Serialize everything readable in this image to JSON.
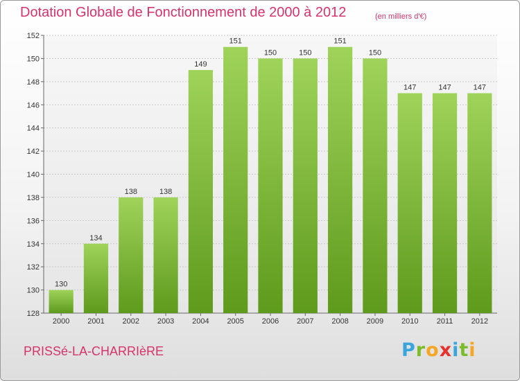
{
  "title": "Dotation Globale de Fonctionnement de 2000 à 2012",
  "title_unit": "(en milliers d'€)",
  "commune": "PRISSé-LA-CHARRIèRE",
  "logo": {
    "letters": [
      "P",
      "r",
      "o",
      "x",
      "i",
      "t",
      "i"
    ],
    "colors": [
      "#3aa5dc",
      "#7cbc2a",
      "#f5a623",
      "#e8302e",
      "#3aa5dc",
      "#7cbc2a",
      "#f5a623"
    ]
  },
  "colors": {
    "bar_top": "#9fd35a",
    "bar_bottom": "#5e9a1c",
    "accent": "#d6336c"
  },
  "chart_data": {
    "type": "bar",
    "title": "Dotation Globale de Fonctionnement de 2000 à 2012",
    "subtitle": "(en milliers d'€)",
    "categories": [
      "2000",
      "2001",
      "2002",
      "2003",
      "2004",
      "2005",
      "2006",
      "2007",
      "2008",
      "2009",
      "2010",
      "2011",
      "2012"
    ],
    "values": [
      130,
      134,
      138,
      138,
      149,
      151,
      150,
      150,
      151,
      150,
      147,
      147,
      147
    ],
    "ylim": [
      128,
      152
    ],
    "yticks": [
      128,
      130,
      132,
      134,
      136,
      138,
      140,
      142,
      144,
      146,
      148,
      150,
      152
    ],
    "grid": true,
    "xlabel": "",
    "ylabel": ""
  }
}
